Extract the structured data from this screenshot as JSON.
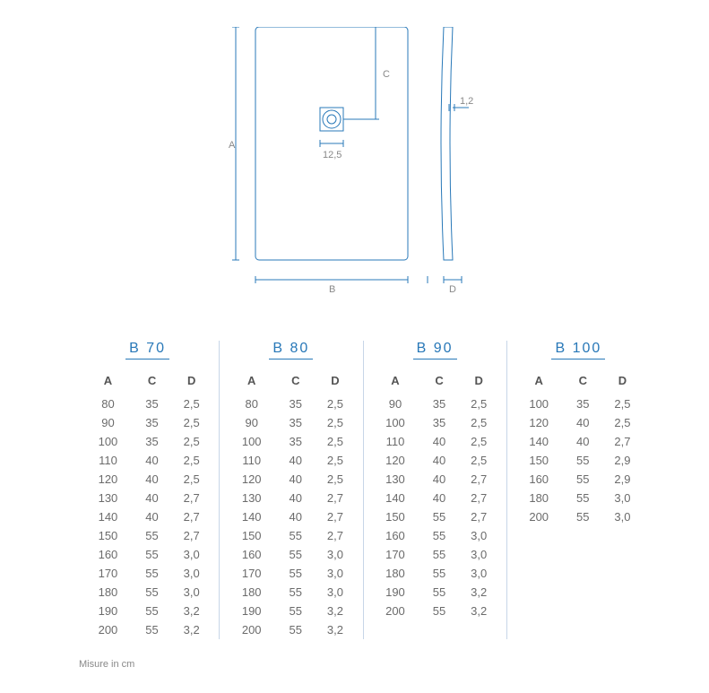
{
  "diagram": {
    "stroke": "#2878b8",
    "label_color": "#888888",
    "labels": {
      "A": "A",
      "B": "B",
      "C": "C",
      "D": "D",
      "drain": "12,5",
      "thickness": "1,2"
    }
  },
  "tables": {
    "columns": [
      "A",
      "C",
      "D"
    ],
    "groups": [
      {
        "title": "B 70",
        "rows": [
          [
            "80",
            "35",
            "2,5"
          ],
          [
            "90",
            "35",
            "2,5"
          ],
          [
            "100",
            "35",
            "2,5"
          ],
          [
            "110",
            "40",
            "2,5"
          ],
          [
            "120",
            "40",
            "2,5"
          ],
          [
            "130",
            "40",
            "2,7"
          ],
          [
            "140",
            "40",
            "2,7"
          ],
          [
            "150",
            "55",
            "2,7"
          ],
          [
            "160",
            "55",
            "3,0"
          ],
          [
            "170",
            "55",
            "3,0"
          ],
          [
            "180",
            "55",
            "3,0"
          ],
          [
            "190",
            "55",
            "3,2"
          ],
          [
            "200",
            "55",
            "3,2"
          ]
        ]
      },
      {
        "title": "B 80",
        "rows": [
          [
            "80",
            "35",
            "2,5"
          ],
          [
            "90",
            "35",
            "2,5"
          ],
          [
            "100",
            "35",
            "2,5"
          ],
          [
            "110",
            "40",
            "2,5"
          ],
          [
            "120",
            "40",
            "2,5"
          ],
          [
            "130",
            "40",
            "2,7"
          ],
          [
            "140",
            "40",
            "2,7"
          ],
          [
            "150",
            "55",
            "2,7"
          ],
          [
            "160",
            "55",
            "3,0"
          ],
          [
            "170",
            "55",
            "3,0"
          ],
          [
            "180",
            "55",
            "3,0"
          ],
          [
            "190",
            "55",
            "3,2"
          ],
          [
            "200",
            "55",
            "3,2"
          ]
        ]
      },
      {
        "title": "B 90",
        "rows": [
          [
            "90",
            "35",
            "2,5"
          ],
          [
            "100",
            "35",
            "2,5"
          ],
          [
            "110",
            "40",
            "2,5"
          ],
          [
            "120",
            "40",
            "2,5"
          ],
          [
            "130",
            "40",
            "2,7"
          ],
          [
            "140",
            "40",
            "2,7"
          ],
          [
            "150",
            "55",
            "2,7"
          ],
          [
            "160",
            "55",
            "3,0"
          ],
          [
            "170",
            "55",
            "3,0"
          ],
          [
            "180",
            "55",
            "3,0"
          ],
          [
            "190",
            "55",
            "3,2"
          ],
          [
            "200",
            "55",
            "3,2"
          ]
        ]
      },
      {
        "title": "B 100",
        "rows": [
          [
            "100",
            "35",
            "2,5"
          ],
          [
            "120",
            "40",
            "2,5"
          ],
          [
            "140",
            "40",
            "2,7"
          ],
          [
            "150",
            "55",
            "2,9"
          ],
          [
            "160",
            "55",
            "2,9"
          ],
          [
            "180",
            "55",
            "3,0"
          ],
          [
            "200",
            "55",
            "3,0"
          ]
        ]
      }
    ]
  },
  "footnote": "Misure in cm"
}
